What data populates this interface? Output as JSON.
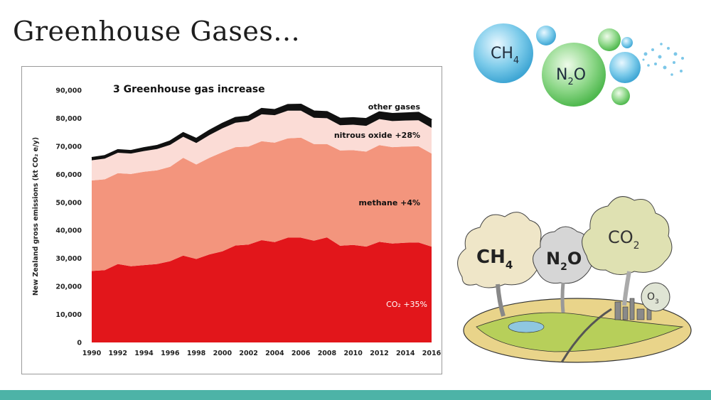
{
  "slide": {
    "title": "Greenhouse Gases..."
  },
  "illustrations": {
    "bubbles": {
      "ch4": "CH",
      "ch4_sub": "4",
      "n2o_a": "N",
      "n2o_sub": "2",
      "n2o_b": "O"
    },
    "volcano": {
      "ch4": "CH",
      "ch4_sub": "4",
      "n2o_a": "N",
      "n2o_sub": "2",
      "n2o_b": "O",
      "co2": "CO",
      "co2_sub": "2",
      "o3": "O",
      "o3_sub": "3"
    }
  },
  "chart_data": {
    "type": "area",
    "stacked": true,
    "title": "3 Greenhouse gas increase",
    "ylabel": "New Zealand gross emissions (kt CO₂ e/y)",
    "ylim": [
      0,
      90000
    ],
    "yticks": [
      0,
      10000,
      20000,
      30000,
      40000,
      50000,
      60000,
      70000,
      80000,
      90000
    ],
    "ytick_labels": [
      "0",
      "10,000",
      "20,000",
      "30,000",
      "40,000",
      "50,000",
      "60,000",
      "70,000",
      "80,000",
      "90,000"
    ],
    "xlim": [
      1990,
      2016
    ],
    "xticks": [
      1990,
      1992,
      1994,
      1996,
      1998,
      2000,
      2002,
      2004,
      2006,
      2008,
      2010,
      2012,
      2014,
      2016
    ],
    "x": [
      1990,
      1991,
      1992,
      1993,
      1994,
      1995,
      1996,
      1997,
      1998,
      1999,
      2000,
      2001,
      2002,
      2003,
      2004,
      2005,
      2006,
      2007,
      2008,
      2009,
      2010,
      2011,
      2012,
      2013,
      2014,
      2015,
      2016
    ],
    "series": [
      {
        "name": "CO₂ +35%",
        "color": "#e2161b",
        "values": [
          25500,
          25800,
          28000,
          27200,
          27600,
          28000,
          29000,
          31000,
          29800,
          31400,
          32500,
          34600,
          34900,
          36500,
          35800,
          37400,
          37400,
          36300,
          37500,
          34500,
          34800,
          34200,
          35900,
          35300,
          35600,
          35700,
          34200
        ]
      },
      {
        "name": "methane +4%",
        "color": "#f3957d",
        "values": [
          32300,
          32400,
          32400,
          32900,
          33300,
          33400,
          33700,
          34900,
          33700,
          34500,
          35400,
          35100,
          35000,
          35300,
          35500,
          35400,
          35700,
          34500,
          33300,
          34000,
          33800,
          33900,
          34500,
          34400,
          34300,
          34300,
          33200
        ]
      },
      {
        "name": "nitrous oxide +28%",
        "color": "#fbdcd6",
        "values": [
          7200,
          7400,
          7300,
          7300,
          7400,
          7600,
          7800,
          7500,
          7700,
          8100,
          8500,
          8700,
          9000,
          9600,
          9800,
          9900,
          9600,
          9400,
          9200,
          9000,
          9100,
          9200,
          9300,
          9300,
          9300,
          9300,
          9200
        ]
      },
      {
        "name": "other gases",
        "color": "#111111",
        "values": [
          800,
          900,
          900,
          900,
          1000,
          1100,
          1200,
          1300,
          1400,
          1500,
          1600,
          1700,
          1700,
          1900,
          1800,
          2000,
          2100,
          2200,
          2200,
          2300,
          2300,
          2400,
          2400,
          2500,
          2500,
          2600,
          2700
        ]
      }
    ]
  }
}
